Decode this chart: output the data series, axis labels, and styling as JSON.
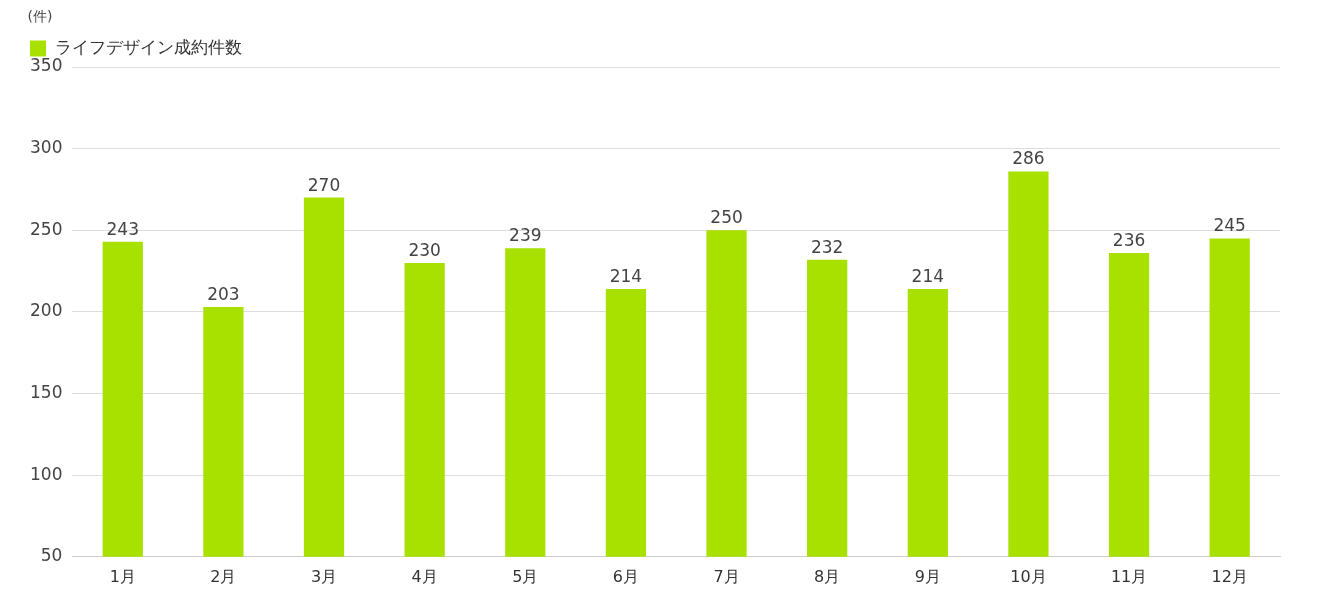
{
  "chart_data": {
    "type": "bar",
    "ylabel": "(件)",
    "categories": [
      "1月",
      "2月",
      "3月",
      "4月",
      "5月",
      "6月",
      "7月",
      "8月",
      "9月",
      "10月",
      "11月",
      "12月"
    ],
    "series": [
      {
        "name": "ライフデザイン成約件数",
        "color": "#a8e000",
        "values": [
          243,
          203,
          270,
          230,
          239,
          214,
          250,
          232,
          214,
          286,
          236,
          245
        ]
      }
    ],
    "ylim": [
      50,
      350
    ],
    "yticks": [
      50,
      100,
      150,
      200,
      250,
      300,
      350
    ],
    "grid": "y",
    "legend": "top left",
    "data_labels": true
  }
}
